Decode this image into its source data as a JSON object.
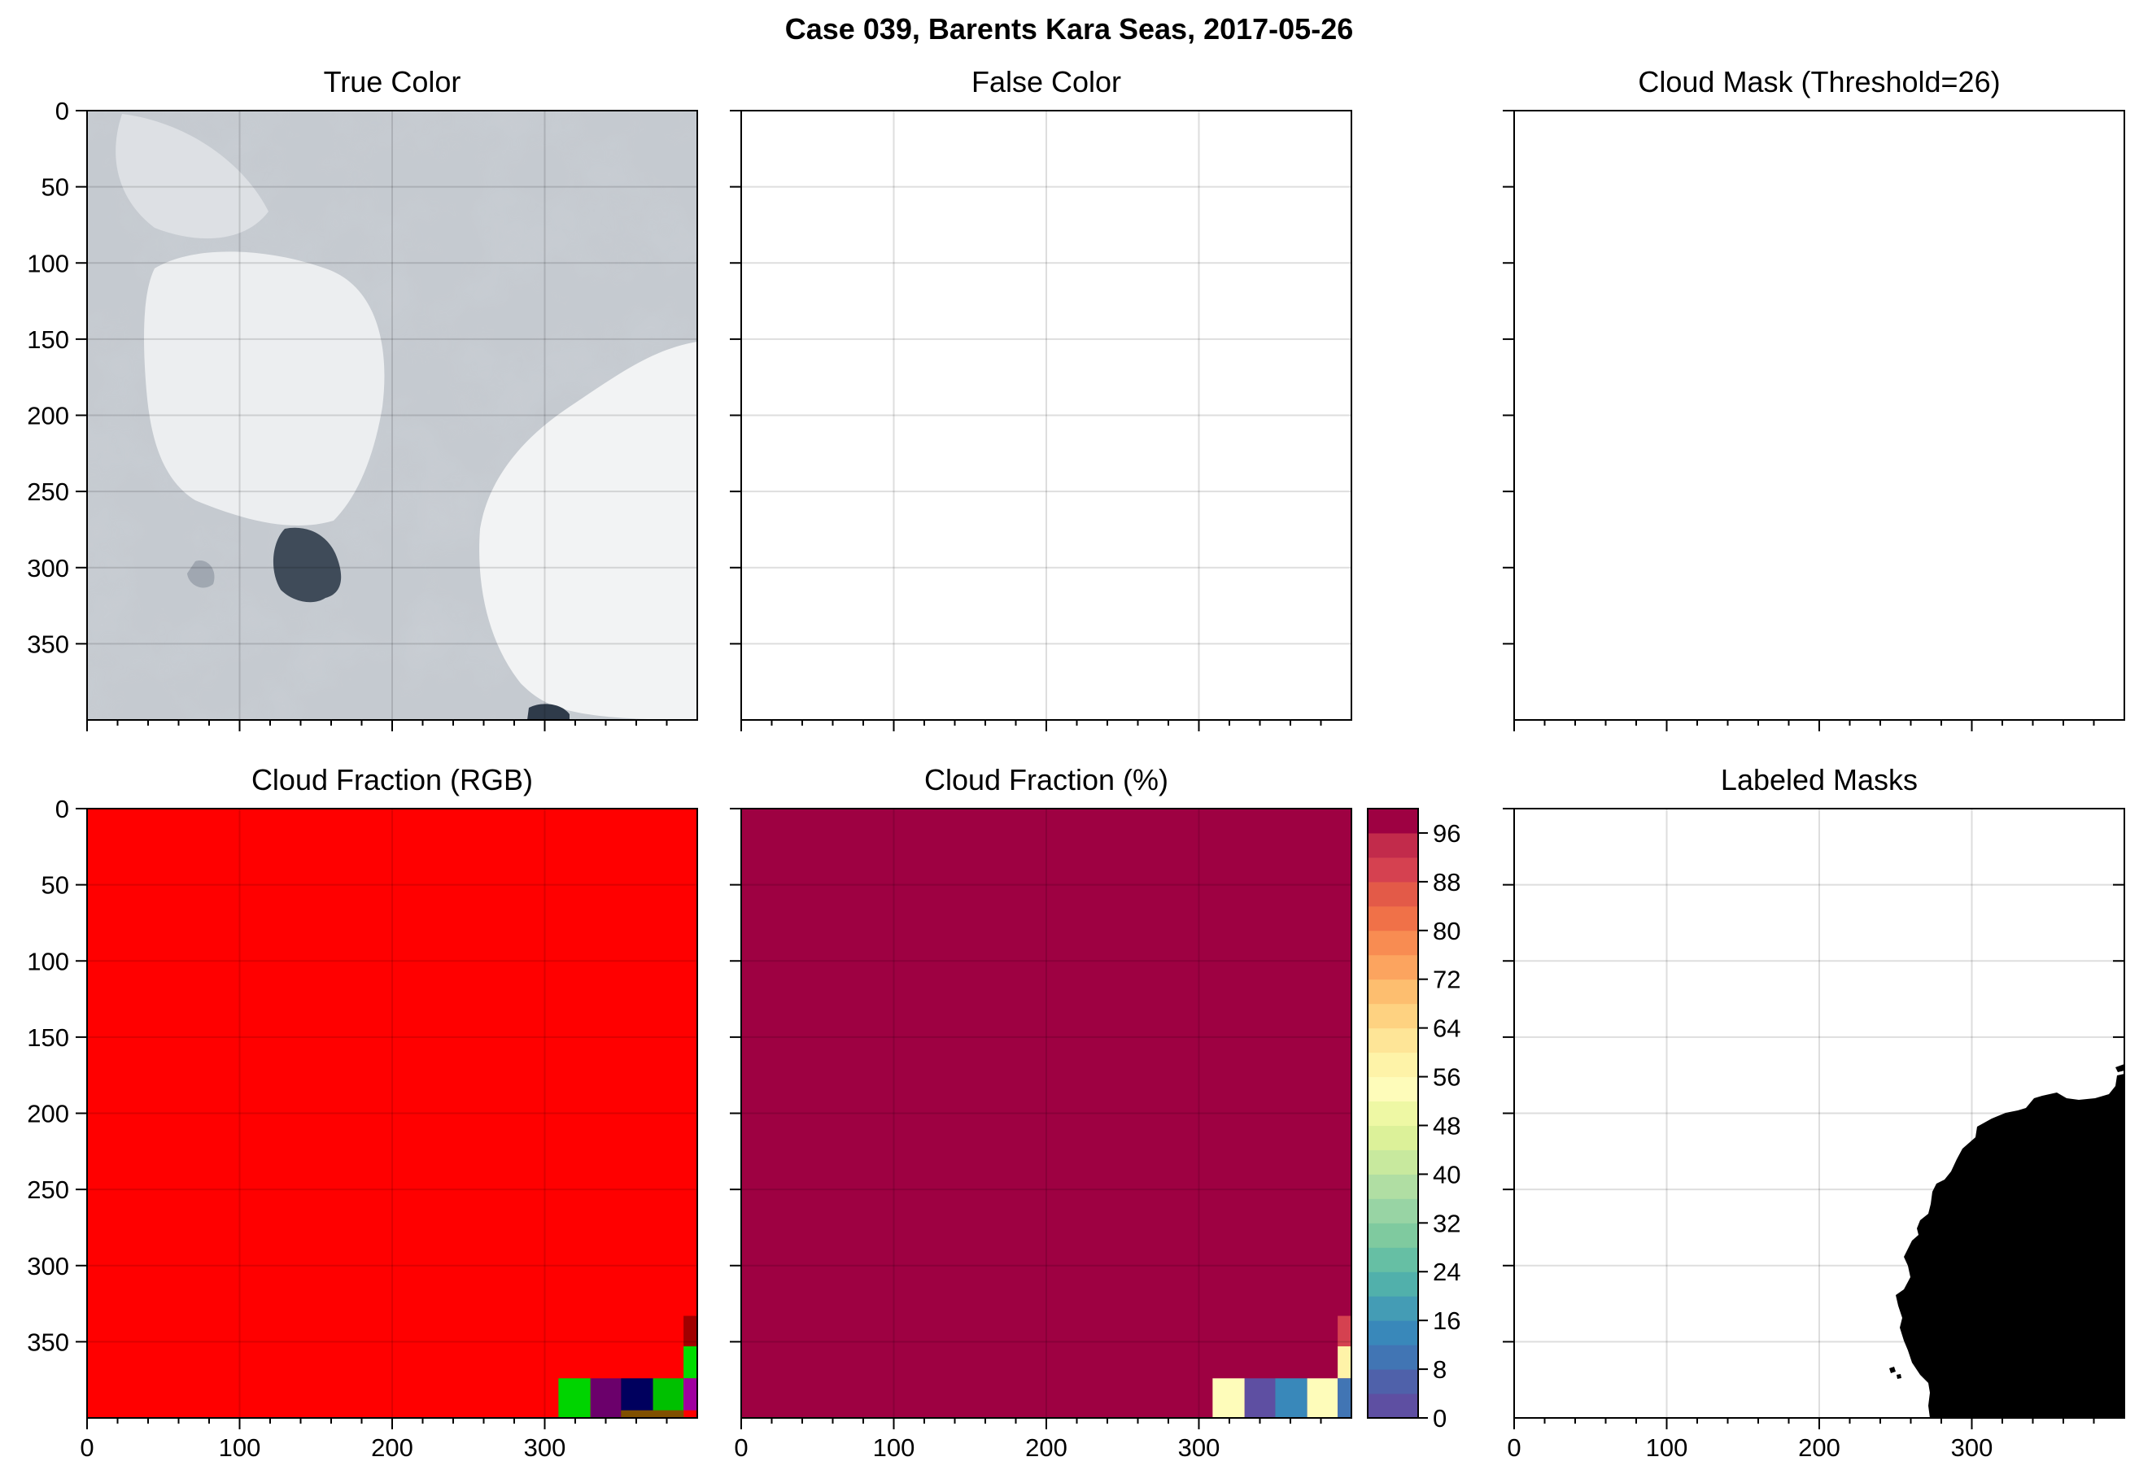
{
  "figure": {
    "title": "Case 039, Barents Kara Seas, 2017-05-26"
  },
  "panels": {
    "true_color": {
      "title": "True Color"
    },
    "false_color": {
      "title": "False Color"
    },
    "cloud_mask": {
      "title": "Cloud Mask (Threshold=26)"
    },
    "cloud_fraction_rgb": {
      "title": "Cloud Fraction (RGB)"
    },
    "cloud_fraction_pct": {
      "title": "Cloud Fraction (%)"
    },
    "labeled_masks": {
      "title": "Labeled Masks"
    }
  },
  "colors": {
    "cf_red": "#ff0000",
    "cf_colormap_top": "#9e0142",
    "mask_black": "#000000",
    "cloud_gray": "#c9ced4",
    "ice_white": "#eef0f2",
    "water_dark": "#43505e"
  },
  "chart_data": [
    {
      "type": "heatmap",
      "panel": "true_color",
      "title": "True Color",
      "xlim": [
        0,
        400
      ],
      "ylim": [
        400,
        0
      ],
      "xticks": [
        "0",
        "100",
        "200",
        "300"
      ],
      "yticks": [
        "0",
        "50",
        "100",
        "150",
        "200",
        "250",
        "300",
        "350"
      ],
      "grid": true,
      "description_source": "satellite image"
    },
    {
      "type": "heatmap",
      "panel": "false_color",
      "title": "False Color",
      "xlim": [
        0,
        400
      ],
      "ylim": [
        400,
        0
      ],
      "grid": true
    },
    {
      "type": "heatmap",
      "panel": "cloud_mask",
      "title": "Cloud Mask (Threshold=26)",
      "xlim": [
        0,
        400
      ],
      "ylim": [
        400,
        0
      ],
      "grid": false
    },
    {
      "type": "heatmap",
      "panel": "cloud_fraction_rgb",
      "title": "Cloud Fraction (RGB)",
      "xlim": [
        0,
        400
      ],
      "ylim": [
        400,
        0
      ],
      "xticks": [
        "0",
        "100",
        "200",
        "300"
      ],
      "yticks": [
        "0",
        "50",
        "100",
        "150",
        "200",
        "250",
        "300",
        "350"
      ],
      "grid": true,
      "background_color": "#ff0000",
      "cells": [
        {
          "x": [
            309,
            330
          ],
          "y": [
            374,
            400
          ],
          "color": "#00d400"
        },
        {
          "x": [
            330,
            350
          ],
          "y": [
            374,
            400
          ],
          "color": "#6b006b"
        },
        {
          "x": [
            350,
            371
          ],
          "y": [
            374,
            400
          ],
          "color": "#00005e"
        },
        {
          "x": [
            371,
            391
          ],
          "y": [
            374,
            400
          ],
          "color": "#00c000"
        },
        {
          "x": [
            391,
            400
          ],
          "y": [
            333,
            353
          ],
          "color": "#a00000"
        },
        {
          "x": [
            391,
            400
          ],
          "y": [
            353,
            374
          ],
          "color": "#00dd00"
        },
        {
          "x": [
            391,
            400
          ],
          "y": [
            374,
            395
          ],
          "color": "#a000a0"
        },
        {
          "x": [
            350,
            391
          ],
          "y": [
            395,
            400
          ],
          "color": "#805000"
        }
      ]
    },
    {
      "type": "heatmap",
      "panel": "cloud_fraction_pct",
      "title": "Cloud Fraction (%)",
      "xlim": [
        0,
        400
      ],
      "ylim": [
        400,
        0
      ],
      "grid": true,
      "background_value": 100,
      "cells": [
        {
          "x": [
            309,
            330
          ],
          "y": [
            374,
            400
          ],
          "value": 54
        },
        {
          "x": [
            330,
            350
          ],
          "y": [
            374,
            400
          ],
          "value": 2
        },
        {
          "x": [
            350,
            371
          ],
          "y": [
            374,
            400
          ],
          "value": 14
        },
        {
          "x": [
            371,
            391
          ],
          "y": [
            374,
            400
          ],
          "value": 54
        },
        {
          "x": [
            391,
            400
          ],
          "y": [
            333,
            353
          ],
          "value": 90
        },
        {
          "x": [
            391,
            400
          ],
          "y": [
            353,
            374
          ],
          "value": 58
        },
        {
          "x": [
            391,
            400
          ],
          "y": [
            374,
            400
          ],
          "value": 8
        }
      ],
      "colorbar": {
        "vmin": 0,
        "vmax": 100,
        "levels": 25,
        "ticks": [
          "0",
          "8",
          "16",
          "24",
          "32",
          "40",
          "48",
          "56",
          "64",
          "72",
          "80",
          "88",
          "96"
        ],
        "colors": [
          "#5e4fa2",
          "#4f61aa",
          "#4175b4",
          "#3988ba",
          "#449cb5",
          "#51b0ab",
          "#66bfa4",
          "#7fca9f",
          "#98d4a4",
          "#b0dea3",
          "#c8e99e",
          "#dcf199",
          "#eef8a4",
          "#fefcba",
          "#fef3a8",
          "#fee597",
          "#fed281",
          "#fdbe6f",
          "#fca45f",
          "#f88c52",
          "#f07148",
          "#e35a48",
          "#d54150",
          "#c22b4b",
          "#9e0142"
        ]
      },
      "value_label": "Cloud Fraction (%)"
    },
    {
      "type": "heatmap",
      "panel": "labeled_masks",
      "title": "Labeled Masks",
      "xlim": [
        0,
        400
      ],
      "ylim": [
        400,
        0
      ],
      "xticks": [
        "0",
        "100",
        "200",
        "300"
      ],
      "yticks": [
        "0",
        "50",
        "100",
        "150",
        "200",
        "250",
        "300",
        "350"
      ],
      "yaxis_side": "right",
      "grid": true,
      "region_color": "#000000"
    }
  ]
}
